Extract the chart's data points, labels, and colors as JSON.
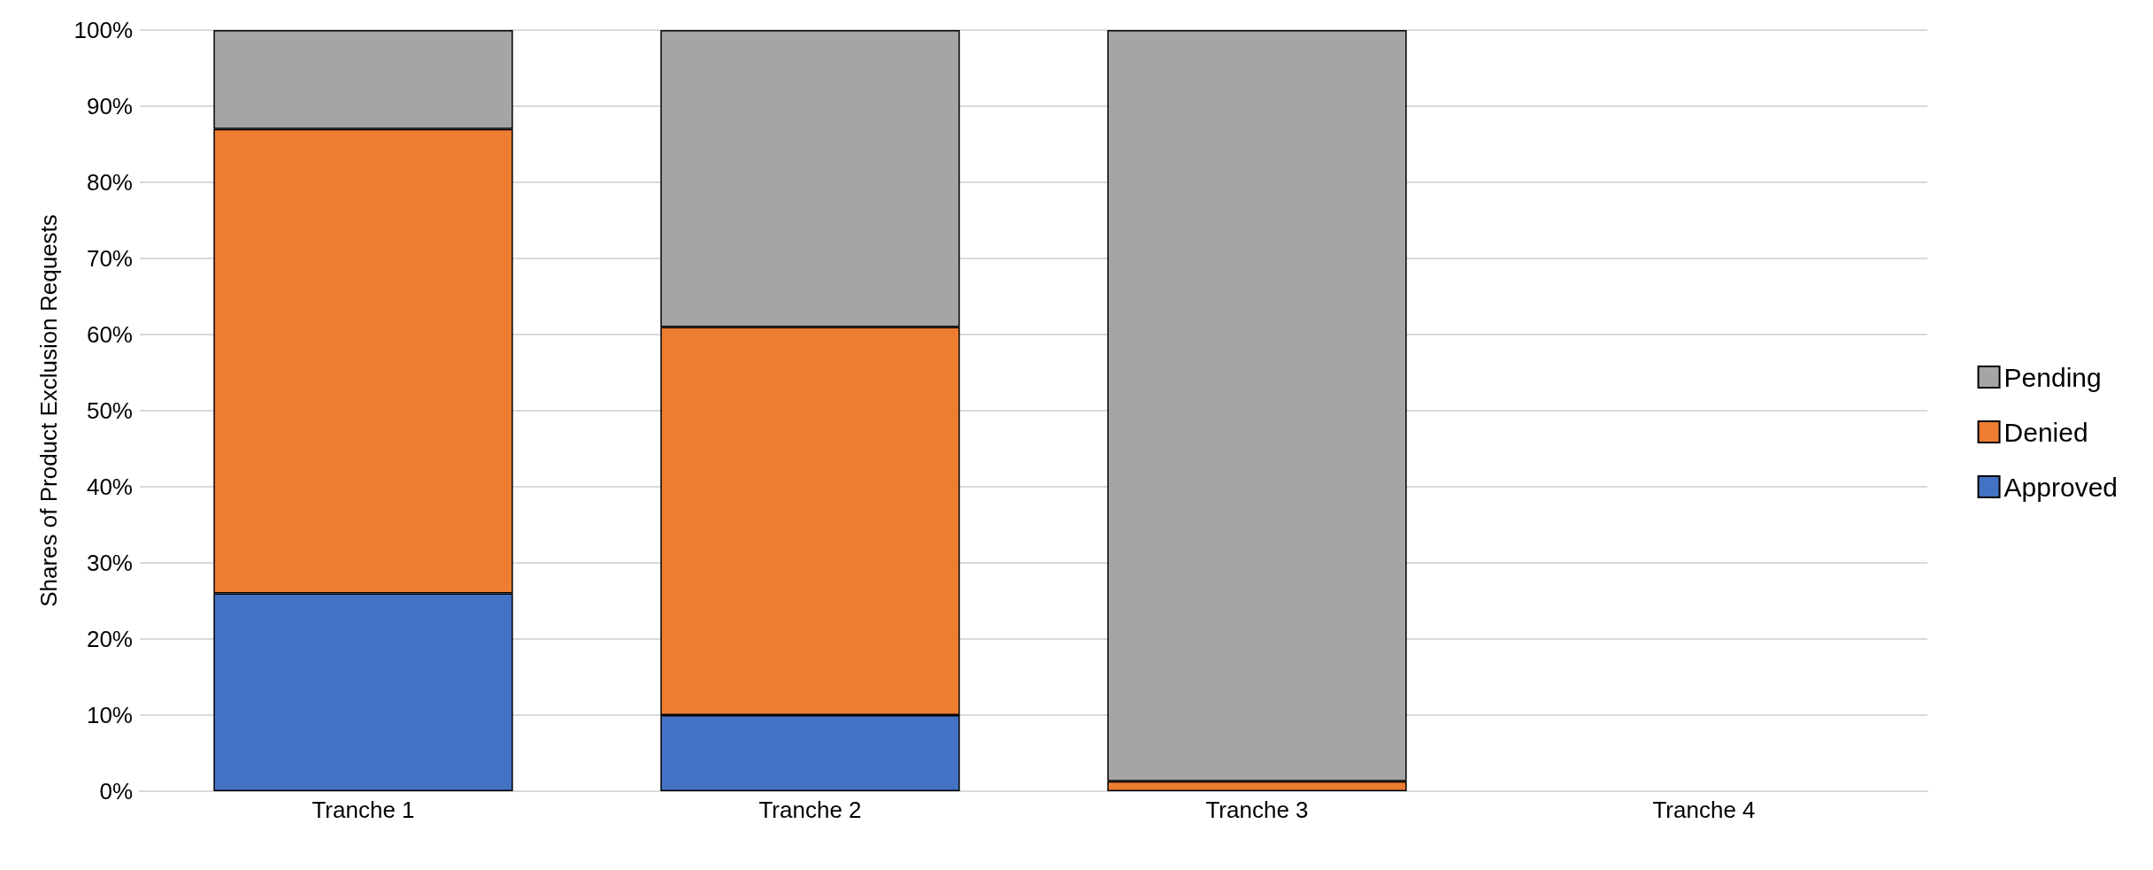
{
  "chart_data": {
    "type": "bar",
    "stacked": true,
    "ylabel": "Shares of Product Exclusion Requests",
    "categories": [
      "Tranche 1",
      "Tranche 2",
      "Tranche 3",
      "Tranche 4"
    ],
    "series": [
      {
        "name": "Approved",
        "color": "#4472c4",
        "values": [
          26,
          10,
          null,
          null
        ]
      },
      {
        "name": "Denied",
        "color": "#ed7d31",
        "values": [
          61,
          51,
          1.3,
          null
        ]
      },
      {
        "name": "Pending",
        "color": "#a5a5a5",
        "values": [
          13,
          39,
          98.7,
          null
        ]
      }
    ],
    "ylim": [
      0,
      100
    ],
    "yticks": [
      {
        "value": 0,
        "label": "0%"
      },
      {
        "value": 10,
        "label": "10%"
      },
      {
        "value": 20,
        "label": "20%"
      },
      {
        "value": 30,
        "label": "30%"
      },
      {
        "value": 40,
        "label": "40%"
      },
      {
        "value": 50,
        "label": "50%"
      },
      {
        "value": 60,
        "label": "60%"
      },
      {
        "value": 70,
        "label": "70%"
      },
      {
        "value": 80,
        "label": "80%"
      },
      {
        "value": 90,
        "label": "90%"
      },
      {
        "value": 100,
        "label": "100%"
      }
    ],
    "grid": "y",
    "legend": "right"
  }
}
